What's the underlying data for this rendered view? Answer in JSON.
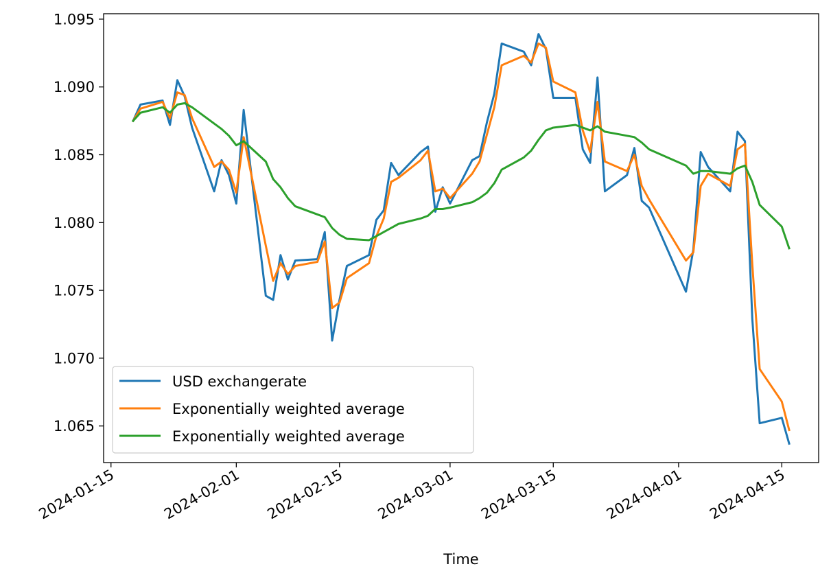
{
  "chart_data": {
    "type": "line",
    "title": "",
    "xlabel": "Time",
    "ylabel": "",
    "x_axis": "date",
    "xlim": [
      "2024-01-14",
      "2024-04-20"
    ],
    "ylim": [
      1.0623,
      1.0954
    ],
    "x_ticks": [
      "2024-01-15",
      "2024-02-01",
      "2024-02-15",
      "2024-03-01",
      "2024-03-15",
      "2024-04-01",
      "2024-04-15"
    ],
    "y_ticks": [
      1.065,
      1.07,
      1.075,
      1.08,
      1.085,
      1.09,
      1.095
    ],
    "y_tick_labels": [
      "1.065",
      "1.070",
      "1.075",
      "1.080",
      "1.085",
      "1.090",
      "1.095"
    ],
    "grid": false,
    "legend_position": "lower-left",
    "x": [
      "2024-01-18",
      "2024-01-19",
      "2024-01-22",
      "2024-01-23",
      "2024-01-24",
      "2024-01-25",
      "2024-01-26",
      "2024-01-29",
      "2024-01-30",
      "2024-01-31",
      "2024-02-01",
      "2024-02-02",
      "2024-02-05",
      "2024-02-06",
      "2024-02-07",
      "2024-02-08",
      "2024-02-09",
      "2024-02-12",
      "2024-02-13",
      "2024-02-14",
      "2024-02-15",
      "2024-02-16",
      "2024-02-19",
      "2024-02-20",
      "2024-02-21",
      "2024-02-22",
      "2024-02-23",
      "2024-02-26",
      "2024-02-27",
      "2024-02-28",
      "2024-02-29",
      "2024-03-01",
      "2024-03-04",
      "2024-03-05",
      "2024-03-06",
      "2024-03-07",
      "2024-03-08",
      "2024-03-11",
      "2024-03-12",
      "2024-03-13",
      "2024-03-14",
      "2024-03-15",
      "2024-03-18",
      "2024-03-19",
      "2024-03-20",
      "2024-03-21",
      "2024-03-22",
      "2024-03-25",
      "2024-03-26",
      "2024-03-27",
      "2024-03-28",
      "2024-04-02",
      "2024-04-03",
      "2024-04-04",
      "2024-04-05",
      "2024-04-08",
      "2024-04-09",
      "2024-04-10",
      "2024-04-11",
      "2024-04-12",
      "2024-04-15",
      "2024-04-16"
    ],
    "series": [
      {
        "name": "USD exchangerate",
        "color": "#1f77b4",
        "values": [
          1.0875,
          1.0887,
          1.089,
          1.0872,
          1.0905,
          1.0893,
          1.087,
          1.0823,
          1.0846,
          1.0835,
          1.0814,
          1.0883,
          1.0746,
          1.0743,
          1.0776,
          1.0758,
          1.0772,
          1.0773,
          1.0793,
          1.0713,
          1.0743,
          1.0768,
          1.0776,
          1.0802,
          1.0809,
          1.0844,
          1.0835,
          1.0852,
          1.0856,
          1.0808,
          1.0826,
          1.0814,
          1.0846,
          1.0849,
          1.0874,
          1.0895,
          1.0932,
          1.0926,
          1.0916,
          1.0939,
          1.0928,
          1.0892,
          1.0892,
          1.0854,
          1.0844,
          1.0907,
          1.0823,
          1.0835,
          1.0855,
          1.0816,
          1.0811,
          1.0749,
          1.078,
          1.0852,
          1.0841,
          1.0823,
          1.0867,
          1.086,
          1.0729,
          1.0652,
          1.0656,
          1.0637
        ]
      },
      {
        "name": "Exponentially weighted average",
        "color": "#ff7f0e",
        "values": [
          1.0875,
          1.0884,
          1.0889,
          1.0877,
          1.0896,
          1.0894,
          1.0877,
          1.0841,
          1.0845,
          1.0839,
          1.0822,
          1.0863,
          1.0783,
          1.0757,
          1.077,
          1.0762,
          1.0768,
          1.0771,
          1.0786,
          1.0737,
          1.0741,
          1.0759,
          1.077,
          1.079,
          1.0803,
          1.083,
          1.0833,
          1.0846,
          1.0853,
          1.0823,
          1.0825,
          1.0818,
          1.0836,
          1.0845,
          1.0865,
          1.0885,
          1.0916,
          1.0923,
          1.0918,
          1.0932,
          1.0929,
          1.0904,
          1.0896,
          1.0868,
          1.0852,
          1.0889,
          1.0845,
          1.0838,
          1.085,
          1.0827,
          1.0817,
          1.0772,
          1.0778,
          1.0827,
          1.0836,
          1.0827,
          1.0854,
          1.0858,
          1.0769,
          1.0692,
          1.0668,
          1.0647
        ]
      },
      {
        "name": "Exponentially weighted average",
        "color": "#2ca02c",
        "values": [
          1.0875,
          1.0881,
          1.0885,
          1.0881,
          1.0887,
          1.0888,
          1.0885,
          1.0873,
          1.0869,
          1.0864,
          1.0857,
          1.086,
          1.0845,
          1.0832,
          1.0826,
          1.0818,
          1.0812,
          1.0806,
          1.0804,
          1.0796,
          1.0791,
          1.0788,
          1.0787,
          1.079,
          1.0793,
          1.0796,
          1.0799,
          1.0803,
          1.0805,
          1.081,
          1.081,
          1.0811,
          1.0815,
          1.0818,
          1.0822,
          1.0829,
          1.0839,
          1.0848,
          1.0853,
          1.0861,
          1.0868,
          1.087,
          1.0872,
          1.087,
          1.0868,
          1.0871,
          1.0867,
          1.0864,
          1.0863,
          1.0859,
          1.0854,
          1.0842,
          1.0836,
          1.0838,
          1.0838,
          1.0836,
          1.084,
          1.0842,
          1.083,
          1.0813,
          1.0797,
          1.0781
        ]
      }
    ]
  }
}
